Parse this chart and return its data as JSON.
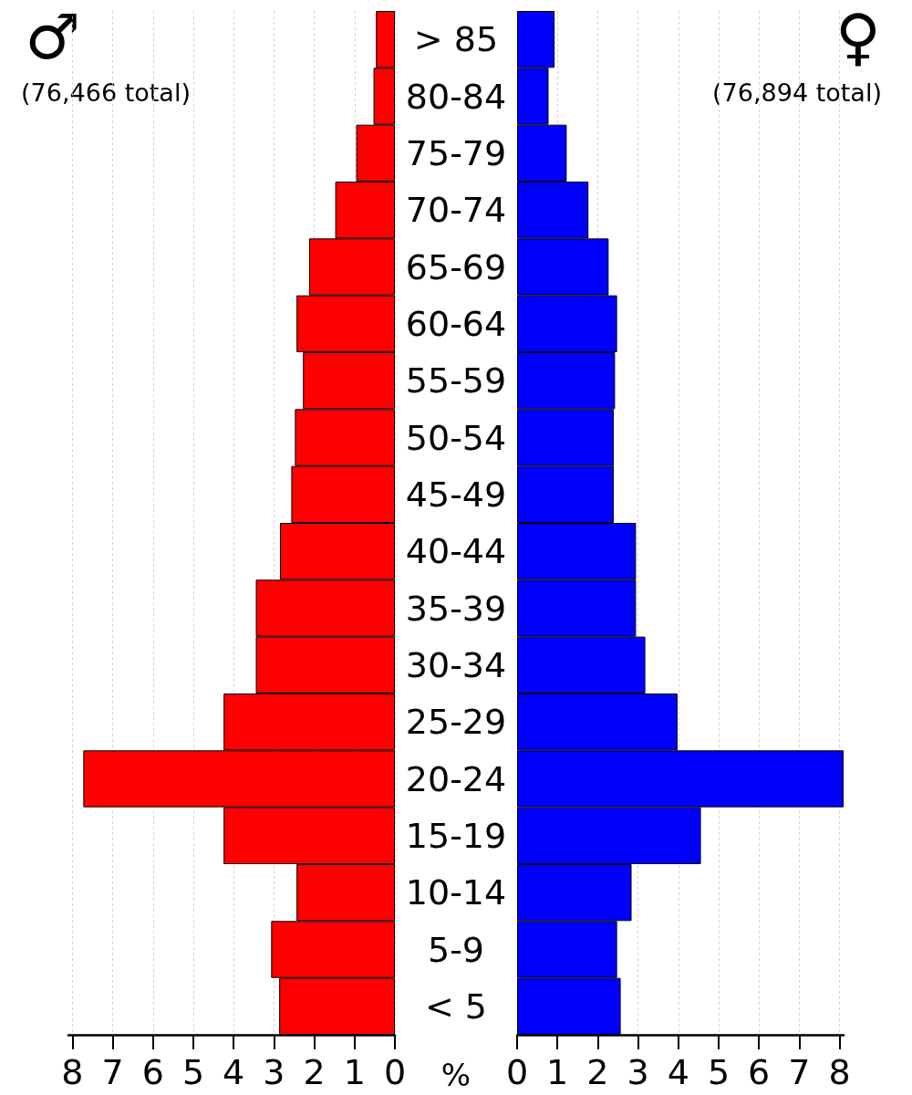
{
  "chart_data": [
    {
      "type": "bar",
      "orientation": "horizontal",
      "categories": [
        "> 85",
        "80-84",
        "75-79",
        "70-74",
        "65-69",
        "60-64",
        "55-59",
        "50-54",
        "45-49",
        "40-44",
        "35-39",
        "30-34",
        "25-29",
        "20-24",
        "15-19",
        "10-14",
        "5-9",
        "< 5"
      ],
      "series": [
        {
          "color": "#ff0000",
          "values": [
            0.47,
            0.53,
            0.96,
            1.48,
            2.13,
            2.44,
            2.28,
            2.48,
            2.57,
            2.85,
            3.45,
            3.45,
            4.25,
            7.73,
            4.25,
            2.44,
            3.07,
            2.87
          ]
        }
      ],
      "xlim": [
        8.1,
        0
      ],
      "xticks": [
        0,
        1,
        2,
        3,
        4,
        5,
        6,
        7,
        8
      ],
      "xlabel": "%",
      "grid": "x",
      "annotations": [
        "♂",
        "(76,466 total)"
      ]
    },
    {
      "type": "bar",
      "orientation": "horizontal",
      "categories": [
        null,
        null,
        null,
        null,
        null,
        null,
        null,
        null,
        null,
        null,
        null,
        null,
        null,
        null,
        null,
        null,
        null,
        null
      ],
      "series": [
        {
          "color": "#0000ff",
          "values": [
            0.93,
            0.78,
            1.23,
            1.77,
            2.27,
            2.48,
            2.43,
            2.4,
            2.4,
            2.95,
            2.95,
            3.18,
            3.98,
            8.1,
            4.56,
            2.84,
            2.48,
            2.57
          ]
        }
      ],
      "xlim": [
        0,
        8.1
      ],
      "xticks": [
        0,
        1,
        2,
        3,
        4,
        5,
        6,
        7,
        8
      ],
      "grid": "x",
      "tick_labels": "x",
      "annotations": [
        "♀",
        "(76,894 total)"
      ]
    }
  ]
}
